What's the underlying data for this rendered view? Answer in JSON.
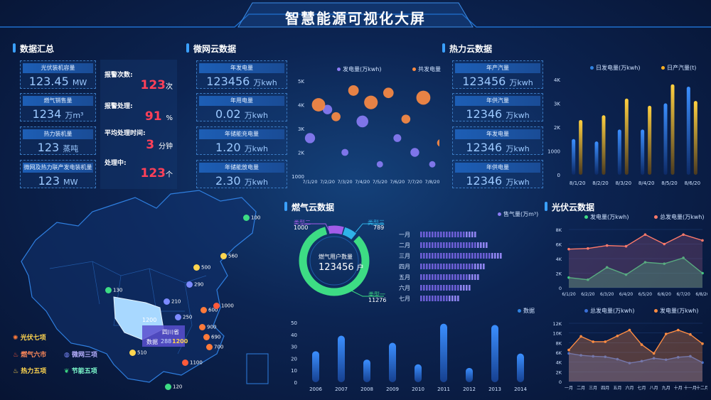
{
  "title": "智慧能源可视化大屏",
  "sections": {
    "summary": "数据汇总",
    "microgrid": "微网云数据",
    "heat": "热力云数据",
    "gas": "燃气云数据",
    "pv": "光伏云数据"
  },
  "summary_stats": [
    {
      "label": "光伏装机容量",
      "value": "123.45",
      "unit": "MW"
    },
    {
      "label": "燃气销售量",
      "value": "1234",
      "unit": "万m³"
    },
    {
      "label": "热力装机量",
      "value": "123",
      "unit": "蒸吨"
    },
    {
      "label": "微网及热力联产发电装机量",
      "value": "123",
      "unit": "MW"
    }
  ],
  "alarms": [
    {
      "label": "报警次数:",
      "value": "123",
      "unit": "次"
    },
    {
      "label": "报警处理:",
      "value": "91",
      "unit": "%"
    },
    {
      "label": "平均处理时间:",
      "value": "3",
      "unit": "分钟"
    },
    {
      "label": "处理中:",
      "value": "123",
      "unit": "个"
    }
  ],
  "microgrid_stats": [
    {
      "label": "年发电量",
      "value": "123456",
      "unit": "万kwh"
    },
    {
      "label": "年用电量",
      "value": "0.02",
      "unit": "万kwh"
    },
    {
      "label": "年储能充电量",
      "value": "1.20",
      "unit": "万kwh"
    },
    {
      "label": "年储能放电量",
      "value": "2.30",
      "unit": "万kwh"
    }
  ],
  "heat_stats": [
    {
      "label": "年产汽量",
      "value": "123456",
      "unit": "万kwh"
    },
    {
      "label": "年供汽量",
      "value": "12346",
      "unit": "万kwh"
    },
    {
      "label": "年发电量",
      "value": "12346",
      "unit": "万kwh"
    },
    {
      "label": "年供电量",
      "value": "12346",
      "unit": "万kwh"
    }
  ],
  "map": {
    "province_label": "四川省",
    "data_label": "数据",
    "data_value": "288",
    "data_value2": "1200",
    "badge_value": "1200",
    "point_labels": [
      "100",
      "560",
      "500",
      "290",
      "130",
      "210",
      "250",
      "600",
      "1000",
      "900",
      "690",
      "700",
      "510",
      "1100",
      "120"
    ],
    "legend": [
      {
        "icon": "sun-icon",
        "label": "光伏七项",
        "color": "#ff7a3a"
      },
      {
        "icon": "fire-icon",
        "label": "燃气六市",
        "color": "#ff5a3a"
      },
      {
        "icon": "globe-icon",
        "label": "微网三项",
        "color": "#7c8aff"
      },
      {
        "icon": "heat-icon",
        "label": "热力五项",
        "color": "#ffd54f"
      },
      {
        "icon": "leaf-icon",
        "label": "节能五项",
        "color": "#3ddc84"
      }
    ]
  },
  "gas_donut": {
    "center_label": "燃气用户数量",
    "center_value": "123456",
    "center_unit": "户",
    "type2_label": "类型二",
    "type2_value": "1000",
    "type3_label": "类型三",
    "type3_value": "789",
    "type1_label": "类型一",
    "type1_value": "11276"
  },
  "colors": {
    "accent": "#3aa0ff",
    "alarm": "#ff4058",
    "orange": "#ff8c42",
    "purple": "#8b7cf6",
    "green": "#3ddc84"
  },
  "chart_data": [
    {
      "id": "microgrid_bubble",
      "type": "scatter",
      "legend": [
        "发电量(万kwh)",
        "共发电量"
      ],
      "categories": [
        "7/1/20",
        "7/2/20",
        "7/3/20",
        "7/4/20",
        "7/5/20",
        "7/6/20",
        "7/7/20",
        "7/8/20"
      ],
      "yticks": [
        "5K",
        "4K",
        "3K",
        "2K",
        "1000"
      ],
      "series": [
        {
          "name": "发电量(万kwh)",
          "values": [
            2600,
            3800,
            2000,
            3300,
            1500,
            2600,
            2000,
            1500
          ]
        },
        {
          "name": "共发电量",
          "values": [
            4000,
            3500,
            4600,
            4100,
            4500,
            3400,
            4300,
            2400
          ]
        }
      ]
    },
    {
      "id": "heat_bar",
      "type": "bar",
      "legend": [
        "日发电量(万kwh)",
        "日产汽量(t)"
      ],
      "categories": [
        "8/1/20",
        "8/2/20",
        "8/3/20",
        "8/4/20",
        "8/5/20",
        "8/6/20"
      ],
      "yticks": [
        "4K",
        "3K",
        "2K",
        "1000",
        "0"
      ],
      "ylim": [
        0,
        4000
      ],
      "series": [
        {
          "name": "日发电量(万kwh)",
          "values": [
            1500,
            1400,
            1900,
            1900,
            3000,
            3700
          ]
        },
        {
          "name": "日产汽量(t)",
          "values": [
            2300,
            2500,
            3200,
            2900,
            3800,
            3100
          ]
        }
      ]
    },
    {
      "id": "gas_hbar",
      "type": "bar",
      "legend": [
        "售气量(万m³)"
      ],
      "categories": [
        "一月",
        "二月",
        "三月",
        "四月",
        "五月",
        "六月",
        "七月"
      ],
      "values": [
        65,
        80,
        95,
        75,
        70,
        60,
        45
      ]
    },
    {
      "id": "gas_vbar",
      "type": "bar",
      "legend": [
        "数据"
      ],
      "categories": [
        "2006",
        "2007",
        "2008",
        "2009",
        "2010",
        "2011",
        "2012",
        "2013",
        "2014"
      ],
      "yticks": [
        "50",
        "40",
        "30",
        "20",
        "10",
        "0"
      ],
      "ylim": [
        0,
        50
      ],
      "values": [
        26,
        39,
        19,
        33,
        15,
        49,
        12,
        48,
        24
      ]
    },
    {
      "id": "pv_area_top",
      "type": "area",
      "legend": [
        "发电量(万kwh)",
        "总发电量(万kwh)"
      ],
      "categories": [
        "6/1/20",
        "6/2/20",
        "6/3/20",
        "6/4/20",
        "6/5/20",
        "6/6/20",
        "6/7/20",
        "6/8/20"
      ],
      "yticks": [
        "8K",
        "6K",
        "4K",
        "2K",
        "0"
      ],
      "ylim": [
        0,
        8000
      ],
      "series": [
        {
          "name": "发电量(万kwh)",
          "values": [
            1400,
            1100,
            2800,
            1800,
            3500,
            3300,
            4100,
            2000
          ]
        },
        {
          "name": "总发电量(万kwh)",
          "values": [
            5300,
            5400,
            5800,
            5700,
            7300,
            6000,
            7300,
            6500
          ]
        }
      ]
    },
    {
      "id": "pv_area_bottom",
      "type": "area",
      "legend": [
        "总发电量(万kwh)",
        "发电量(万kwh)"
      ],
      "categories": [
        "一月",
        "二月",
        "三月",
        "四月",
        "五月",
        "六月",
        "七月",
        "八月",
        "九月",
        "十月",
        "十一月",
        "十二月"
      ],
      "yticks": [
        "12K",
        "10K",
        "8K",
        "6K",
        "4K",
        "2K",
        "0"
      ],
      "ylim": [
        0,
        12000
      ],
      "series": [
        {
          "name": "总发电量(万kwh)",
          "values": [
            5800,
            5400,
            5200,
            5100,
            4600,
            3800,
            4200,
            4800,
            4500,
            5000,
            5200,
            3900
          ]
        },
        {
          "name": "发电量(万kwh)",
          "values": [
            6500,
            9300,
            8200,
            8200,
            9400,
            10600,
            7600,
            5800,
            9800,
            10600,
            9700,
            7800
          ]
        }
      ]
    }
  ]
}
